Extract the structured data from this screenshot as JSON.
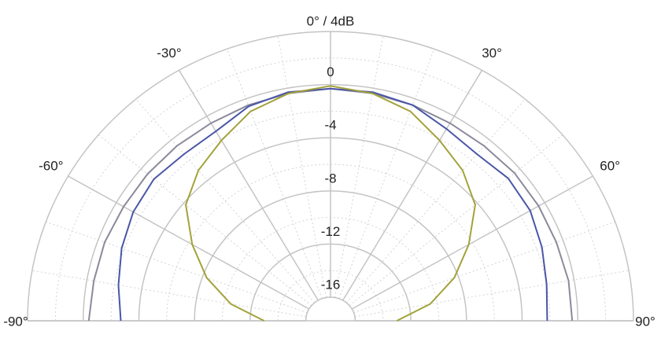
{
  "chart_data": {
    "type": "polar",
    "title": "0° / 4dB",
    "x": [
      -90,
      -80,
      -70,
      -60,
      -50,
      -40,
      -30,
      -20,
      -10,
      0,
      10,
      20,
      30,
      40,
      50,
      60,
      70,
      80,
      90
    ],
    "series": [
      {
        "color": "#8a8a9c",
        "values": [
          -0.4,
          -0.5,
          -0.5,
          -0.6,
          -0.6,
          -0.6,
          -0.6,
          -0.5,
          -0.4,
          -0.3,
          -0.4,
          -0.5,
          -0.6,
          -0.6,
          -0.5,
          -0.5,
          -0.5,
          -0.4,
          -0.4
        ]
      },
      {
        "color": "#4a56a6",
        "values": [
          -2.7,
          -2.3,
          -1.8,
          -1.4,
          -1.2,
          -1.4,
          -1.3,
          -0.6,
          -0.3,
          -0.3,
          -0.3,
          -0.5,
          -1.1,
          -1.4,
          -1.1,
          -1.2,
          -1.6,
          -2.0,
          -2.2
        ]
      },
      {
        "color": "#a3a23a",
        "values": [
          -13,
          -10.5,
          -8.3,
          -6.3,
          -4.2,
          -3.0,
          -2.1,
          -1.0,
          -0.4,
          -0.1,
          -0.4,
          -1.0,
          -2.1,
          -3.0,
          -4.2,
          -6.3,
          -8.3,
          -10.5,
          -13
        ]
      }
    ],
    "rlim": [
      -16,
      4
    ],
    "rticks": [
      0,
      -4,
      -8,
      -12,
      -16
    ],
    "thetalim": [
      -90,
      90
    ],
    "thetaticks": [
      {
        "value": -90,
        "label": "-90°"
      },
      {
        "value": -60,
        "label": "-60°"
      },
      {
        "value": -30,
        "label": "-30°"
      },
      {
        "value": 30,
        "label": "30°"
      },
      {
        "value": 60,
        "label": "60°"
      },
      {
        "value": 90,
        "label": "90°"
      }
    ],
    "grid": true
  }
}
